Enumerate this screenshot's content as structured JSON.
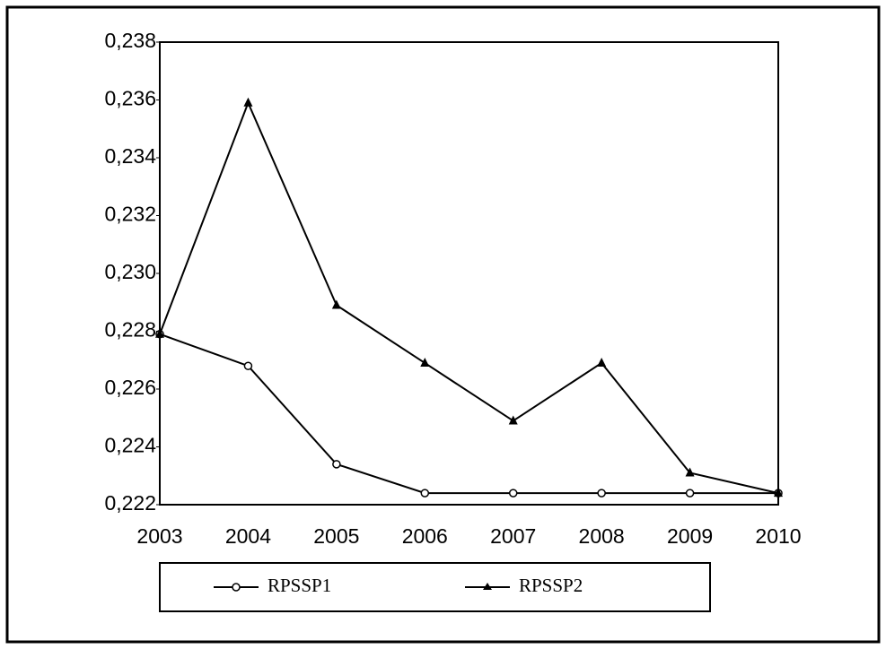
{
  "chart_data": {
    "type": "line",
    "categories": [
      "2003",
      "2004",
      "2005",
      "2006",
      "2007",
      "2008",
      "2009",
      "2010"
    ],
    "series": [
      {
        "name": "RPSSP1",
        "color": "#000000",
        "marker": "circle",
        "values": [
          0.2279,
          0.2268,
          0.2234,
          0.2224,
          0.2224,
          0.2224,
          0.2224,
          0.2224
        ]
      },
      {
        "name": "RPSSP2",
        "color": "#000000",
        "marker": "triangle",
        "values": [
          0.2279,
          0.2359,
          0.2289,
          0.2269,
          0.2249,
          0.2269,
          0.2231,
          0.2224
        ]
      }
    ],
    "ylim": [
      0.222,
      0.238
    ],
    "yticks": [
      {
        "value": 0.222,
        "label": "0,222"
      },
      {
        "value": 0.224,
        "label": "0,224"
      },
      {
        "value": 0.226,
        "label": "0,226"
      },
      {
        "value": 0.228,
        "label": "0,228"
      },
      {
        "value": 0.23,
        "label": "0,230"
      },
      {
        "value": 0.232,
        "label": "0,232"
      },
      {
        "value": 0.234,
        "label": "0,234"
      },
      {
        "value": 0.236,
        "label": "0,236"
      },
      {
        "value": 0.238,
        "label": "0,238"
      }
    ],
    "grid": false
  }
}
